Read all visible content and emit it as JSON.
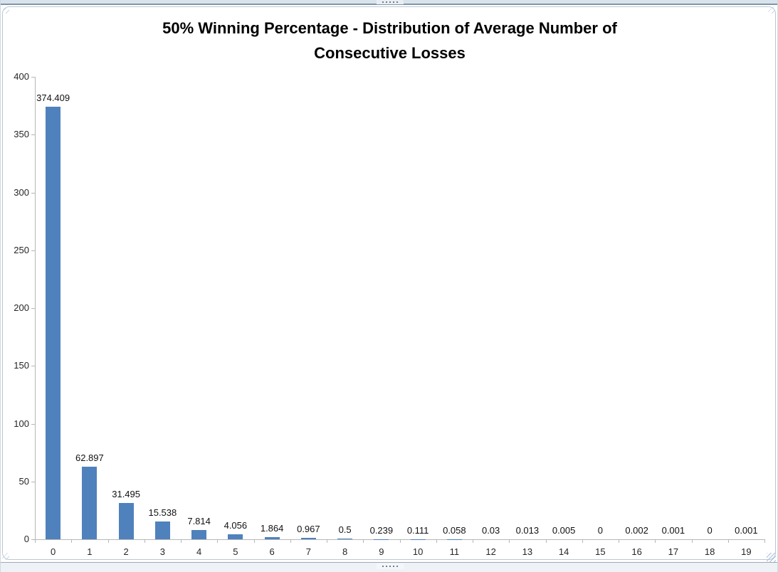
{
  "chart_data": {
    "type": "bar",
    "title": "50% Winning Percentage - Distribution of Average Number of Consecutive Losses",
    "title_lines": [
      "50% Winning Percentage - Distribution of Average Number of",
      "Consecutive Losses"
    ],
    "categories": [
      "0",
      "1",
      "2",
      "3",
      "4",
      "5",
      "6",
      "7",
      "8",
      "9",
      "10",
      "11",
      "12",
      "13",
      "14",
      "15",
      "16",
      "17",
      "18",
      "19"
    ],
    "values": [
      374.409,
      62.897,
      31.495,
      15.538,
      7.814,
      4.056,
      1.864,
      0.967,
      0.5,
      0.239,
      0.111,
      0.058,
      0.03,
      0.013,
      0.005,
      0,
      0.002,
      0.001,
      0,
      0.001
    ],
    "value_labels": [
      "374.409",
      "62.897",
      "31.495",
      "15.538",
      "7.814",
      "4.056",
      "1.864",
      "0.967",
      "0.5",
      "0.239",
      "0.111",
      "0.058",
      "0.03",
      "0.013",
      "0.005",
      "0",
      "0.002",
      "0.001",
      "0",
      "0.001"
    ],
    "xlabel": "",
    "ylabel": "",
    "ylim": [
      0,
      400
    ],
    "ytick_step": 50,
    "ytick_labels": [
      "0",
      "50",
      "100",
      "150",
      "200",
      "250",
      "300",
      "350",
      "400"
    ],
    "grid": false,
    "legend": "none",
    "data_labels": "outside-end",
    "bar_color": "#4F81BD",
    "axis_color": "#B7B7B7",
    "text_color": "#262626"
  }
}
